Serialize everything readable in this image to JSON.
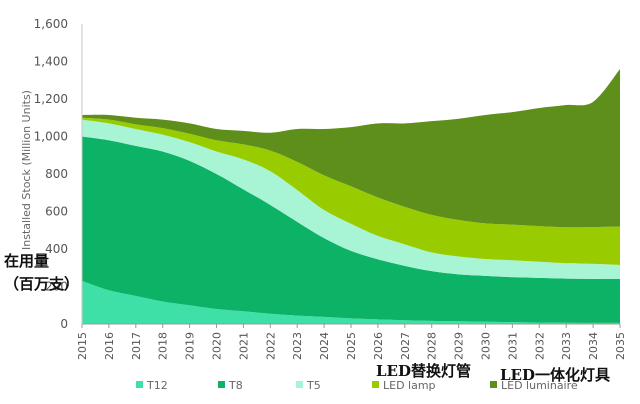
{
  "chart_data": {
    "type": "area",
    "stacked": true,
    "ylabel": "Installed Stock (Million Units)",
    "xlabel": "",
    "ylim": [
      0,
      1600
    ],
    "yticks": [
      "0",
      "200",
      "400",
      "600",
      "800",
      "1,000",
      "1,200",
      "1,400",
      "1,600"
    ],
    "x": [
      "2015",
      "2016",
      "2017",
      "2018",
      "2019",
      "2020",
      "2021",
      "2022",
      "2023",
      "2024",
      "2025",
      "2026",
      "2027",
      "2028",
      "2029",
      "2030",
      "2031",
      "2032",
      "2033",
      "2034",
      "2035"
    ],
    "series": [
      {
        "name": "T12",
        "color": "#3fe0a8",
        "values": [
          230,
          180,
          150,
          120,
          100,
          80,
          68,
          55,
          45,
          38,
          30,
          25,
          20,
          17,
          15,
          12,
          10,
          8,
          7,
          6,
          5
        ]
      },
      {
        "name": "T8",
        "color": "#0cb266",
        "values": [
          770,
          800,
          800,
          800,
          770,
          720,
          650,
          580,
          500,
          420,
          360,
          320,
          290,
          265,
          250,
          245,
          240,
          238,
          235,
          235,
          235
        ]
      },
      {
        "name": "T5",
        "color": "#a8f5d6",
        "values": [
          90,
          90,
          90,
          90,
          100,
          120,
          160,
          180,
          170,
          150,
          145,
          125,
          115,
          100,
          95,
          90,
          90,
          86,
          82,
          80,
          75
        ]
      },
      {
        "name": "LED lamp",
        "color": "#99cc00",
        "values": [
          10,
          20,
          25,
          35,
          45,
          60,
          80,
          110,
          150,
          185,
          200,
          205,
          200,
          200,
          195,
          190,
          190,
          190,
          192,
          196,
          205
        ]
      },
      {
        "name": "LED luminaire",
        "color": "#5e8f1a",
        "values": [
          15,
          25,
          35,
          45,
          55,
          60,
          72,
          95,
          175,
          247,
          315,
          395,
          445,
          500,
          540,
          578,
          600,
          630,
          652,
          668,
          840
        ]
      }
    ]
  },
  "annotations": {
    "left_line1": "在用量",
    "left_line2": "（百万支）",
    "mid": "LED替换灯管",
    "right": "LED一体化灯具"
  }
}
